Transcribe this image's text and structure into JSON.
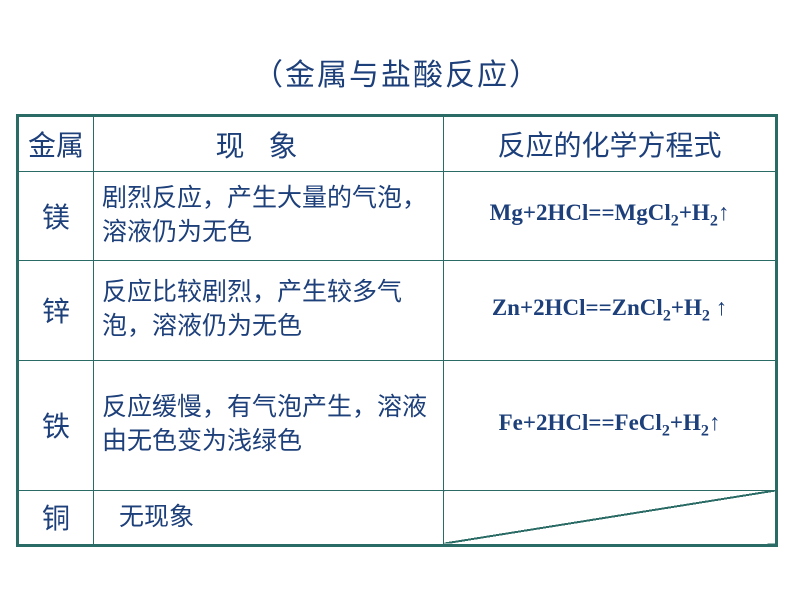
{
  "title": "（金属与盐酸反应）",
  "table": {
    "border_color": "#2a6b66",
    "text_color": "#1d3f7a",
    "background_color": "#ffffff",
    "headers": {
      "metal": "金属",
      "phenomenon": "现象",
      "equation": "反应的化学方程式"
    },
    "rows": [
      {
        "metal": "镁",
        "phenomenon": "剧烈反应，产生大量的气泡，溶液仍为无色",
        "equation": "Mg+2HCl==MgCl₂+H₂↑"
      },
      {
        "metal": "锌",
        "phenomenon": "反应比较剧烈，产生较多气泡，溶液仍为无色",
        "equation": "Zn+2HCl==ZnCl₂+H₂ ↑"
      },
      {
        "metal": "铁",
        "phenomenon": "反应缓慢，有气泡产生，溶液由无色变为浅绿色",
        "equation": "Fe+2HCl==FeCl₂+H₂↑"
      },
      {
        "metal": "铜",
        "phenomenon": "无现象",
        "equation": ""
      }
    ]
  }
}
